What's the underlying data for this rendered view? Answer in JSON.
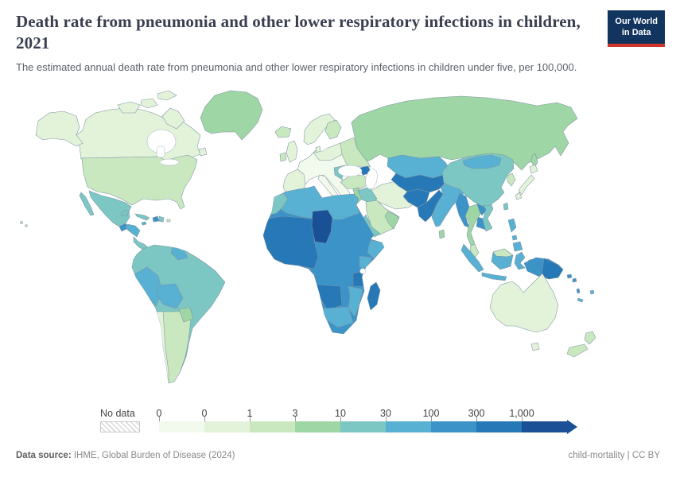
{
  "header": {
    "title": "Death rate from pneumonia and other lower respiratory infections in children, 2021",
    "subtitle": "The estimated annual death rate from pneumonia and other lower respiratory infections in children under five, per 100,000.",
    "logo": {
      "line1": "Our World",
      "line2": "in Data",
      "bg": "#12355f",
      "accent": "#d0342b"
    }
  },
  "footer": {
    "source_label": "Data source:",
    "source_text": " IHME, Global Burden of Disease (2024)",
    "rights_text": "child-mortality | CC BY"
  },
  "map": {
    "ocean_color": "#ffffff",
    "border_color": "#7e93a2"
  },
  "chart_data": {
    "type": "choropleth_map",
    "no_data_label": "No data",
    "tick_labels": [
      "0",
      "0",
      "1",
      "3",
      "10",
      "30",
      "100",
      "300",
      "1,000"
    ],
    "bin_colors": [
      "#f2faed",
      "#e2f3d9",
      "#c9e8c0",
      "#9fd6a5",
      "#7cc7c3",
      "#58b0d3",
      "#3b93c8",
      "#2678b7",
      "#1a5096"
    ],
    "regions": {
      "alaska": 2,
      "canada": 2,
      "arctic-victoria-island": 2,
      "arctic-melville-island": 2,
      "ellesmere-island": 2,
      "baffin-island": 2,
      "newfoundland": 2,
      "greenland": 4,
      "iceland": 3,
      "usa": 3,
      "mexico": 5,
      "baja-california": 5,
      "guatemala": 7,
      "honduras-nicaragua": 6,
      "costa-rica-panama": 5,
      "cuba": 5,
      "jamaica": 6,
      "haiti": 7,
      "dominican-republic": 5,
      "puerto-rico": 3,
      "south-america": 5,
      "peru": 6,
      "bolivia": 6,
      "guyana-suriname": 6,
      "paraguay": 4,
      "argentina": 3,
      "chile": 2,
      "europe": 1,
      "spain": 2,
      "germany-poland": 2,
      "ukraine-belarus": 3,
      "balkans": 5,
      "italy": 1,
      "sicily": 2,
      "uk": 2,
      "ireland": 3,
      "scandinavia": 2,
      "finland": 3,
      "denmark": 2,
      "turkey": 3,
      "levant": 4,
      "caucasus": 8,
      "russia": 4,
      "sakhalin": 4,
      "kazakhstan": 6,
      "central-asia": 8,
      "afghanistan": 8,
      "pakistan": 8,
      "iran": 2,
      "iraq": 5,
      "saudi-arabia": 3,
      "yemen": 5,
      "oman": 4,
      "africa": 7,
      "north-africa": 6,
      "morocco": 5,
      "west-africa": 8,
      "chad": 9,
      "somalia": 6,
      "kenya": 6,
      "tanzania": 8,
      "angola": 8,
      "namibia-botswana": 6,
      "mozambique-zambia": 6,
      "madagascar": 8,
      "india": 6,
      "sri-lanka": 4,
      "myanmar": 7,
      "thailand": 4,
      "laos": 7,
      "cambodia": 7,
      "vietnam": 5,
      "malay-peninsula": 3,
      "china": 5,
      "mongolia": 6,
      "korea": 3,
      "japan-hokkaido": 2,
      "japan-honshu": 2,
      "japan-kyushu": 2,
      "taiwan": 5,
      "sumatra": 6,
      "java": 6,
      "borneo": 6,
      "borneo-malaysia": 3,
      "sulawesi": 6,
      "moluccas": 6,
      "philippines-luzon": 6,
      "philippines-visayas": 6,
      "philippines-mindanao": 6,
      "new-guinea-west": 7,
      "papua-new-guinea": 8,
      "solomon-islands": 7,
      "solomon-islands-2": 7,
      "vanuatu": 7,
      "fiji": 6,
      "new-caledonia": 6,
      "australia": 2,
      "tasmania": 2,
      "new-zealand-north": 3,
      "new-zealand-south": 3
    }
  }
}
